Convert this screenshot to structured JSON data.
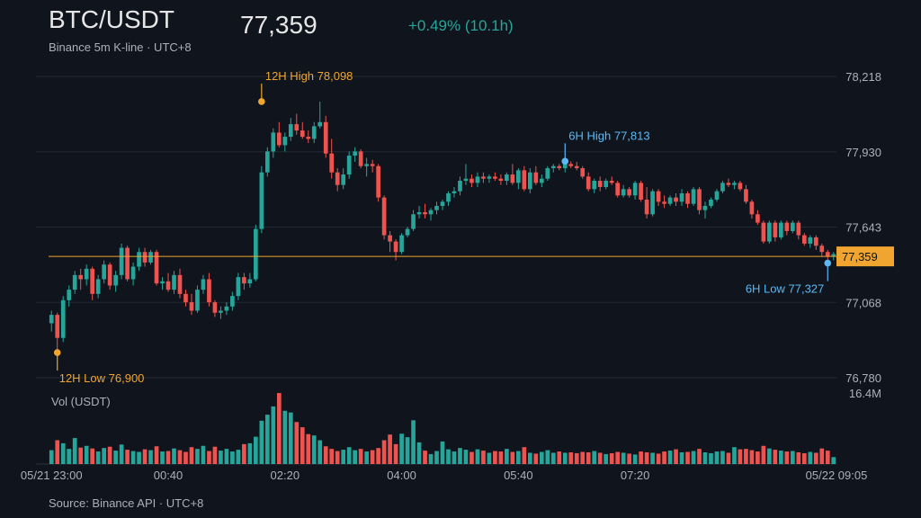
{
  "header": {
    "title": "BTC/USDT",
    "subtitle": "Binance 5m K-line · UTC+8",
    "last_price": "77,359",
    "change": "+0.49% (10.1h)"
  },
  "footer": {
    "source": "Source: Binance API · UTC+8"
  },
  "colors": {
    "up": "#26a69a",
    "down": "#ef5350",
    "price_line": "#f0a530",
    "six_hour_marker": "#5bb8f5",
    "twelve_hour_marker": "#f0a530"
  },
  "chart_data": {
    "type": "candlestick",
    "interval": "5m",
    "y_axis": {
      "ylim": [
        76780,
        78218
      ],
      "ticks": [
        "78,218",
        "77,930",
        "77,643",
        "77,068",
        "76,780"
      ]
    },
    "x_axis": {
      "tick_labels": [
        "05/21 23:00",
        "00:40",
        "02:20",
        "04:00",
        "05:40",
        "07:20",
        "05/22 09:05"
      ]
    },
    "volume": {
      "label": "Vol (USDT)",
      "max_label": "16.4M",
      "max": 16.4
    },
    "current_price": {
      "value": 77359,
      "label": "77,359"
    },
    "annotations": [
      {
        "text": "12H High 78,098",
        "value": 78098,
        "kind": "12h-high"
      },
      {
        "text": "12H Low 76,900",
        "value": 76900,
        "kind": "12h-low"
      },
      {
        "text": "6H High 77,813",
        "value": 77813,
        "kind": "6h-high"
      },
      {
        "text": "6H Low 77,327",
        "value": 77327,
        "kind": "6h-low"
      }
    ],
    "candles": [
      [
        77040,
        77100,
        77000,
        77080,
        3.2
      ],
      [
        77080,
        77090,
        76900,
        76970,
        5.5
      ],
      [
        76970,
        77170,
        76950,
        77150,
        4.8
      ],
      [
        77150,
        77220,
        77120,
        77200,
        3.5
      ],
      [
        77200,
        77290,
        77180,
        77270,
        6.0
      ],
      [
        77270,
        77300,
        77200,
        77250,
        3.8
      ],
      [
        77250,
        77320,
        77220,
        77300,
        4.2
      ],
      [
        77300,
        77310,
        77150,
        77180,
        3.6
      ],
      [
        77180,
        77270,
        77160,
        77250,
        2.9
      ],
      [
        77250,
        77340,
        77230,
        77320,
        3.7
      ],
      [
        77320,
        77330,
        77200,
        77220,
        4.0
      ],
      [
        77220,
        77290,
        77190,
        77270,
        3.1
      ],
      [
        77270,
        77420,
        77250,
        77400,
        4.5
      ],
      [
        77400,
        77410,
        77240,
        77250,
        3.3
      ],
      [
        77250,
        77330,
        77220,
        77310,
        3.0
      ],
      [
        77310,
        77400,
        77290,
        77380,
        2.8
      ],
      [
        77380,
        77400,
        77310,
        77330,
        3.4
      ],
      [
        77330,
        77390,
        77320,
        77380,
        3.2
      ],
      [
        77380,
        77390,
        77220,
        77230,
        4.1
      ],
      [
        77230,
        77260,
        77200,
        77240,
        2.9
      ],
      [
        77240,
        77280,
        77190,
        77200,
        3.0
      ],
      [
        77200,
        77290,
        77180,
        77270,
        3.6
      ],
      [
        77270,
        77300,
        77160,
        77180,
        3.2
      ],
      [
        77180,
        77200,
        77120,
        77140,
        2.8
      ],
      [
        77140,
        77180,
        77080,
        77100,
        3.9
      ],
      [
        77100,
        77220,
        77090,
        77200,
        3.5
      ],
      [
        77200,
        77270,
        77180,
        77250,
        4.2
      ],
      [
        77250,
        77280,
        77120,
        77140,
        3.0
      ],
      [
        77140,
        77150,
        77070,
        77090,
        4.0
      ],
      [
        77090,
        77120,
        77060,
        77100,
        3.1
      ],
      [
        77100,
        77140,
        77080,
        77120,
        3.5
      ],
      [
        77120,
        77190,
        77100,
        77170,
        2.9
      ],
      [
        77170,
        77280,
        77150,
        77260,
        3.3
      ],
      [
        77260,
        77280,
        77200,
        77230,
        4.6
      ],
      [
        77230,
        77280,
        77210,
        77250,
        4.8
      ],
      [
        77250,
        77510,
        77240,
        77490,
        6.3
      ],
      [
        77490,
        77790,
        77470,
        77760,
        10.0
      ],
      [
        77760,
        77880,
        77740,
        77860,
        11.4
      ],
      [
        77860,
        77970,
        77830,
        77950,
        13.3
      ],
      [
        77950,
        78000,
        77880,
        77890,
        16.4
      ],
      [
        77890,
        77950,
        77860,
        77930,
        12.3
      ],
      [
        77930,
        78020,
        77910,
        77990,
        11.9
      ],
      [
        77990,
        78040,
        77940,
        77960,
        9.7
      ],
      [
        77960,
        78000,
        77920,
        77930,
        8.5
      ],
      [
        77930,
        77960,
        77900,
        77920,
        6.9
      ],
      [
        77920,
        78000,
        77900,
        77980,
        6.6
      ],
      [
        77980,
        78098,
        77970,
        78000,
        5.5
      ],
      [
        78000,
        78030,
        77830,
        77850,
        4.1
      ],
      [
        77850,
        77920,
        77730,
        77760,
        3.5
      ],
      [
        77760,
        77780,
        77670,
        77700,
        3.0
      ],
      [
        77700,
        77780,
        77680,
        77750,
        3.3
      ],
      [
        77750,
        77860,
        77730,
        77840,
        3.9
      ],
      [
        77840,
        77880,
        77810,
        77860,
        3.2
      ],
      [
        77860,
        77870,
        77780,
        77790,
        3.5
      ],
      [
        77790,
        77830,
        77740,
        77800,
        2.9
      ],
      [
        77800,
        77820,
        77760,
        77790,
        3.2
      ],
      [
        77790,
        77800,
        77620,
        77640,
        3.7
      ],
      [
        77640,
        77650,
        77440,
        77460,
        5.5
      ],
      [
        77460,
        77480,
        77380,
        77430,
        6.8
      ],
      [
        77430,
        77440,
        77340,
        77380,
        4.6
      ],
      [
        77380,
        77470,
        77370,
        77460,
        7.0
      ],
      [
        77460,
        77500,
        77450,
        77490,
        6.2
      ],
      [
        77490,
        77580,
        77480,
        77560,
        10.1
      ],
      [
        77560,
        77600,
        77540,
        77570,
        5.0
      ],
      [
        77570,
        77610,
        77540,
        77560,
        3.1
      ],
      [
        77560,
        77590,
        77530,
        77580,
        2.3
      ],
      [
        77580,
        77620,
        77560,
        77600,
        3.0
      ],
      [
        77600,
        77630,
        77580,
        77620,
        5.2
      ],
      [
        77620,
        77670,
        77600,
        77660,
        3.4
      ],
      [
        77660,
        77690,
        77640,
        77670,
        2.9
      ],
      [
        77670,
        77740,
        77650,
        77720,
        3.7
      ],
      [
        77720,
        77800,
        77700,
        77730,
        3.3
      ],
      [
        77730,
        77750,
        77690,
        77710,
        2.8
      ],
      [
        77710,
        77760,
        77690,
        77740,
        3.4
      ],
      [
        77740,
        77760,
        77710,
        77730,
        3.1
      ],
      [
        77730,
        77750,
        77710,
        77740,
        2.6
      ],
      [
        77740,
        77760,
        77720,
        77730,
        3.0
      ],
      [
        77730,
        77750,
        77700,
        77720,
        2.9
      ],
      [
        77720,
        77760,
        77700,
        77750,
        3.5
      ],
      [
        77750,
        77800,
        77700,
        77710,
        2.8
      ],
      [
        77710,
        77780,
        77680,
        77770,
        3.0
      ],
      [
        77770,
        77790,
        77670,
        77680,
        3.9
      ],
      [
        77680,
        77780,
        77660,
        77760,
        2.6
      ],
      [
        77760,
        77790,
        77700,
        77710,
        2.4
      ],
      [
        77710,
        77750,
        77690,
        77730,
        2.8
      ],
      [
        77730,
        77790,
        77720,
        77780,
        3.2
      ],
      [
        77780,
        77800,
        77760,
        77790,
        2.6
      ],
      [
        77790,
        77800,
        77770,
        77780,
        2.9
      ],
      [
        77780,
        77810,
        77760,
        77800,
        2.6
      ],
      [
        77800,
        77813,
        77780,
        77790,
        2.7
      ],
      [
        77790,
        77810,
        77770,
        77780,
        2.5
      ],
      [
        77780,
        77790,
        77730,
        77740,
        2.8
      ],
      [
        77740,
        77760,
        77670,
        77680,
        2.7
      ],
      [
        77680,
        77730,
        77660,
        77720,
        3.0
      ],
      [
        77720,
        77740,
        77670,
        77690,
        2.6
      ],
      [
        77690,
        77730,
        77680,
        77720,
        2.3
      ],
      [
        77720,
        77740,
        77700,
        77710,
        2.5
      ],
      [
        77710,
        77720,
        77640,
        77650,
        2.8
      ],
      [
        77650,
        77700,
        77640,
        77680,
        2.6
      ],
      [
        77680,
        77690,
        77640,
        77650,
        2.4
      ],
      [
        77650,
        77720,
        77630,
        77710,
        2.2
      ],
      [
        77710,
        77720,
        77620,
        77630,
        2.9
      ],
      [
        77630,
        77690,
        77540,
        77560,
        2.7
      ],
      [
        77560,
        77680,
        77550,
        77670,
        2.6
      ],
      [
        77670,
        77680,
        77600,
        77620,
        2.4
      ],
      [
        77620,
        77650,
        77590,
        77610,
        2.9
      ],
      [
        77610,
        77650,
        77600,
        77640,
        3.1
      ],
      [
        77640,
        77660,
        77600,
        77620,
        3.4
      ],
      [
        77620,
        77680,
        77600,
        77660,
        2.7
      ],
      [
        77660,
        77670,
        77590,
        77610,
        2.8
      ],
      [
        77610,
        77690,
        77600,
        77680,
        3.0
      ],
      [
        77680,
        77690,
        77560,
        77580,
        3.5
      ],
      [
        77580,
        77620,
        77540,
        77600,
        2.7
      ],
      [
        77600,
        77640,
        77590,
        77630,
        2.5
      ],
      [
        77630,
        77680,
        77620,
        77670,
        2.9
      ],
      [
        77670,
        77720,
        77660,
        77710,
        3.0
      ],
      [
        77710,
        77730,
        77690,
        77700,
        2.6
      ],
      [
        77700,
        77720,
        77680,
        77710,
        3.9
      ],
      [
        77710,
        77720,
        77670,
        77680,
        3.4
      ],
      [
        77680,
        77700,
        77610,
        77620,
        3.5
      ],
      [
        77620,
        77630,
        77540,
        77560,
        3.2
      ],
      [
        77560,
        77580,
        77510,
        77520,
        2.9
      ],
      [
        77520,
        77530,
        77420,
        77430,
        4.2
      ],
      [
        77430,
        77530,
        77420,
        77520,
        3.6
      ],
      [
        77520,
        77530,
        77430,
        77450,
        3.3
      ],
      [
        77450,
        77530,
        77440,
        77520,
        3.1
      ],
      [
        77520,
        77530,
        77460,
        77480,
        2.9
      ],
      [
        77480,
        77530,
        77470,
        77520,
        3.0
      ],
      [
        77520,
        77530,
        77440,
        77460,
        2.7
      ],
      [
        77460,
        77470,
        77410,
        77420,
        2.5
      ],
      [
        77420,
        77460,
        77400,
        77450,
        2.8
      ],
      [
        77450,
        77460,
        77390,
        77410,
        2.6
      ],
      [
        77410,
        77420,
        77360,
        77380,
        3.6
      ],
      [
        77380,
        77390,
        77330,
        77360,
        3.1
      ],
      [
        77360,
        77380,
        77340,
        77370,
        1.6
      ]
    ]
  }
}
